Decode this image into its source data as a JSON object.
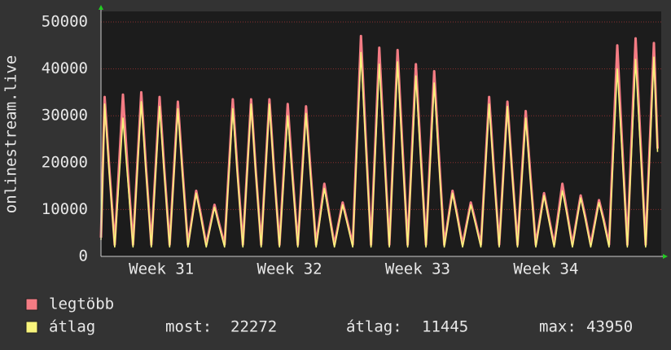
{
  "chart_data": {
    "type": "line",
    "ylabel": "onlinestream.live",
    "x": [
      0,
      0.2,
      0.45,
      0.75,
      1.2,
      1.45,
      1.75,
      2.2,
      2.45,
      2.75,
      3.2,
      3.45,
      3.75,
      4.2,
      4.45,
      4.75,
      5.2,
      5.45,
      5.75,
      6.2,
      6.45,
      6.75,
      7.2,
      7.45,
      7.75,
      8.2,
      8.45,
      8.75,
      9.2,
      9.45,
      9.75,
      10.2,
      10.45,
      10.75,
      11.2,
      11.45,
      11.75,
      12.2,
      12.45,
      12.75,
      13.2,
      13.45,
      13.75,
      14.2,
      14.45,
      14.75,
      15.2,
      15.45,
      15.75,
      16.2,
      16.45,
      16.75,
      17.2,
      17.45,
      17.75,
      18.2,
      18.45,
      18.75,
      19.2,
      19.45,
      19.75,
      20.2,
      20.45,
      20.75,
      21.2,
      21.45,
      21.75,
      22.2,
      22.45,
      22.75,
      23.2,
      23.45,
      23.75,
      24.2,
      24.45,
      24.75,
      25.2,
      25.45,
      25.75,
      26.2,
      26.45,
      26.75,
      27.2,
      27.45,
      27.75,
      28.2,
      28.45,
      28.75,
      29.2,
      29.45,
      29.75,
      30.2,
      30.4
    ],
    "series": [
      {
        "name": "legtöbb",
        "color": "#f47c84",
        "values": [
          4000,
          34000,
          19000,
          2500,
          34500,
          19000,
          2500,
          35000,
          19500,
          2500,
          34000,
          19000,
          2500,
          33000,
          18500,
          2500,
          14000,
          9000,
          2500,
          11000,
          7000,
          2500,
          33500,
          18500,
          2500,
          33500,
          18500,
          2500,
          33500,
          18500,
          2500,
          32500,
          18000,
          2500,
          32000,
          18000,
          2500,
          15500,
          9500,
          2500,
          11500,
          7500,
          2500,
          47000,
          26000,
          2500,
          44500,
          24500,
          2500,
          44000,
          24500,
          2500,
          41000,
          23000,
          2500,
          39500,
          22000,
          2500,
          14000,
          9000,
          2500,
          11500,
          7500,
          2500,
          34000,
          19000,
          2500,
          33000,
          18500,
          2500,
          31000,
          17500,
          2500,
          13500,
          8500,
          2500,
          15500,
          9500,
          2500,
          13000,
          8500,
          2500,
          12000,
          8000,
          2500,
          45000,
          25000,
          2500,
          46500,
          26000,
          2500,
          45500,
          23000
        ]
      },
      {
        "name": "átlag",
        "color": "#f8f47c",
        "values": [
          3500,
          32500,
          18000,
          2000,
          29500,
          17000,
          2000,
          33000,
          18500,
          2000,
          32000,
          18000,
          2000,
          31500,
          17500,
          2000,
          13500,
          8500,
          2000,
          10500,
          6500,
          2000,
          31500,
          17500,
          2000,
          32500,
          18000,
          2000,
          32500,
          18000,
          2000,
          30000,
          17000,
          2000,
          30500,
          17000,
          2000,
          14500,
          9000,
          2000,
          11000,
          7000,
          2000,
          43500,
          24500,
          2000,
          41000,
          23000,
          2000,
          41500,
          23000,
          2000,
          38500,
          21500,
          2000,
          37000,
          20500,
          2000,
          13500,
          8500,
          2000,
          11000,
          7000,
          2000,
          32500,
          18000,
          2000,
          32000,
          18000,
          2000,
          29500,
          16500,
          2000,
          13000,
          8000,
          2000,
          14000,
          9000,
          2000,
          12500,
          8000,
          2000,
          11500,
          7500,
          2000,
          40000,
          23000,
          2000,
          42000,
          24000,
          2000,
          42500,
          22272
        ]
      }
    ],
    "xlim": [
      0,
      30.6
    ],
    "xticks": [
      {
        "value": 3.3,
        "label": "Week 31"
      },
      {
        "value": 10.3,
        "label": "Week 32"
      },
      {
        "value": 17.3,
        "label": "Week 33"
      },
      {
        "value": 24.3,
        "label": "Week 34"
      }
    ],
    "ylim": [
      0,
      50000
    ],
    "yticks": [
      0,
      10000,
      20000,
      30000,
      40000,
      50000
    ],
    "grid": true,
    "stats": [
      {
        "label": "most:",
        "value": 22272
      },
      {
        "label": "átlag:",
        "value": 11445
      },
      {
        "label": "max:",
        "value": 43950
      }
    ]
  }
}
